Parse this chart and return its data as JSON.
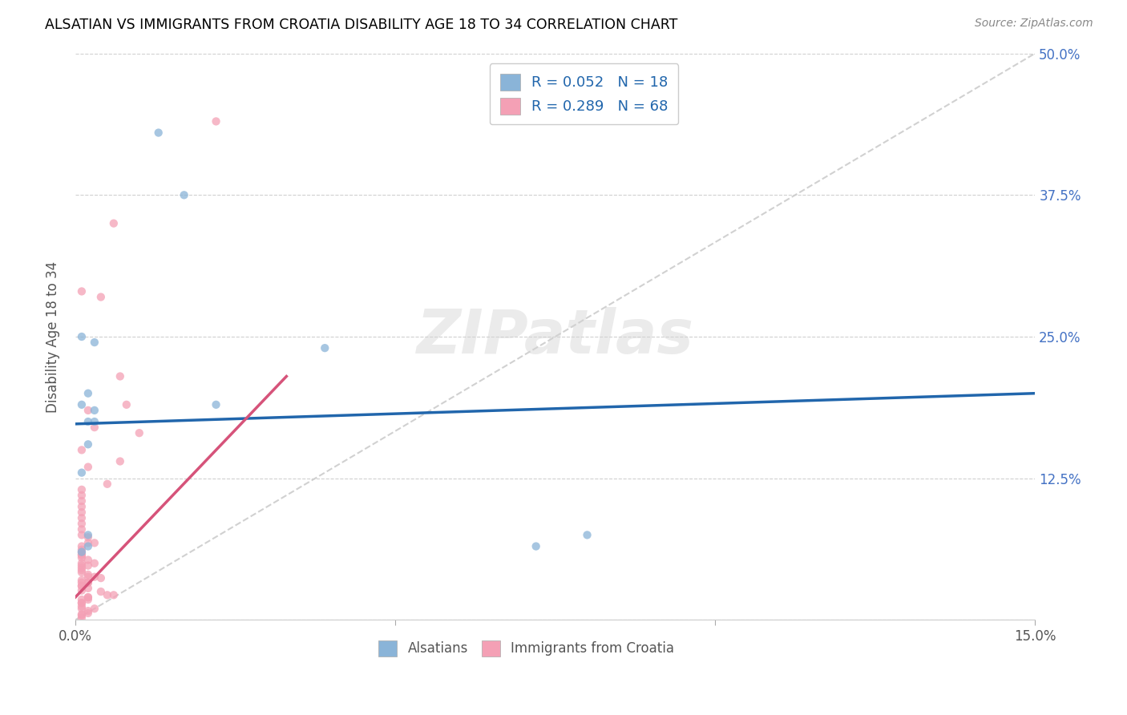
{
  "title": "ALSATIAN VS IMMIGRANTS FROM CROATIA DISABILITY AGE 18 TO 34 CORRELATION CHART",
  "source": "Source: ZipAtlas.com",
  "ylabel": "Disability Age 18 to 34",
  "xlim": [
    0.0,
    0.15
  ],
  "ylim": [
    0.0,
    0.5
  ],
  "watermark": "ZIPatlas",
  "legend_blue_label": "R = 0.052   N = 18",
  "legend_pink_label": "R = 0.289   N = 68",
  "legend_bottom_blue": "Alsatians",
  "legend_bottom_pink": "Immigrants from Croatia",
  "blue_color": "#8ab4d8",
  "pink_color": "#f4a0b5",
  "blue_line_color": "#2166ac",
  "pink_line_color": "#d6537a",
  "scatter_alpha": 0.75,
  "scatter_size": 55,
  "alsatian_x": [
    0.013,
    0.003,
    0.017,
    0.001,
    0.001,
    0.002,
    0.002,
    0.003,
    0.003,
    0.022,
    0.039,
    0.001,
    0.002,
    0.002,
    0.001,
    0.072,
    0.08,
    0.002
  ],
  "alsatian_y": [
    0.43,
    0.245,
    0.375,
    0.25,
    0.19,
    0.2,
    0.175,
    0.185,
    0.175,
    0.19,
    0.24,
    0.06,
    0.065,
    0.075,
    0.13,
    0.065,
    0.075,
    0.155
  ],
  "croatia_x": [
    0.022,
    0.006,
    0.001,
    0.004,
    0.007,
    0.008,
    0.002,
    0.003,
    0.01,
    0.001,
    0.007,
    0.002,
    0.005,
    0.001,
    0.001,
    0.001,
    0.001,
    0.001,
    0.001,
    0.001,
    0.001,
    0.001,
    0.002,
    0.003,
    0.002,
    0.001,
    0.001,
    0.001,
    0.001,
    0.001,
    0.001,
    0.002,
    0.003,
    0.001,
    0.001,
    0.002,
    0.001,
    0.001,
    0.001,
    0.002,
    0.002,
    0.003,
    0.004,
    0.001,
    0.002,
    0.002,
    0.001,
    0.001,
    0.001,
    0.002,
    0.001,
    0.004,
    0.005,
    0.006,
    0.002,
    0.002,
    0.001,
    0.002,
    0.001,
    0.001,
    0.001,
    0.001,
    0.003,
    0.002,
    0.002,
    0.001,
    0.001,
    0.001
  ],
  "croatia_y": [
    0.44,
    0.35,
    0.29,
    0.285,
    0.215,
    0.19,
    0.185,
    0.17,
    0.165,
    0.15,
    0.14,
    0.135,
    0.12,
    0.115,
    0.11,
    0.105,
    0.1,
    0.095,
    0.09,
    0.085,
    0.08,
    0.075,
    0.073,
    0.068,
    0.068,
    0.065,
    0.062,
    0.06,
    0.058,
    0.057,
    0.055,
    0.053,
    0.05,
    0.05,
    0.048,
    0.048,
    0.046,
    0.044,
    0.042,
    0.04,
    0.038,
    0.038,
    0.037,
    0.035,
    0.033,
    0.033,
    0.033,
    0.03,
    0.03,
    0.028,
    0.026,
    0.025,
    0.022,
    0.022,
    0.02,
    0.02,
    0.018,
    0.018,
    0.015,
    0.015,
    0.012,
    0.01,
    0.01,
    0.008,
    0.006,
    0.005,
    0.004,
    0.002
  ],
  "blue_line_x": [
    0.0,
    0.15
  ],
  "blue_line_y": [
    0.173,
    0.2
  ],
  "pink_line_x": [
    0.0,
    0.033
  ],
  "pink_line_y": [
    0.02,
    0.215
  ]
}
